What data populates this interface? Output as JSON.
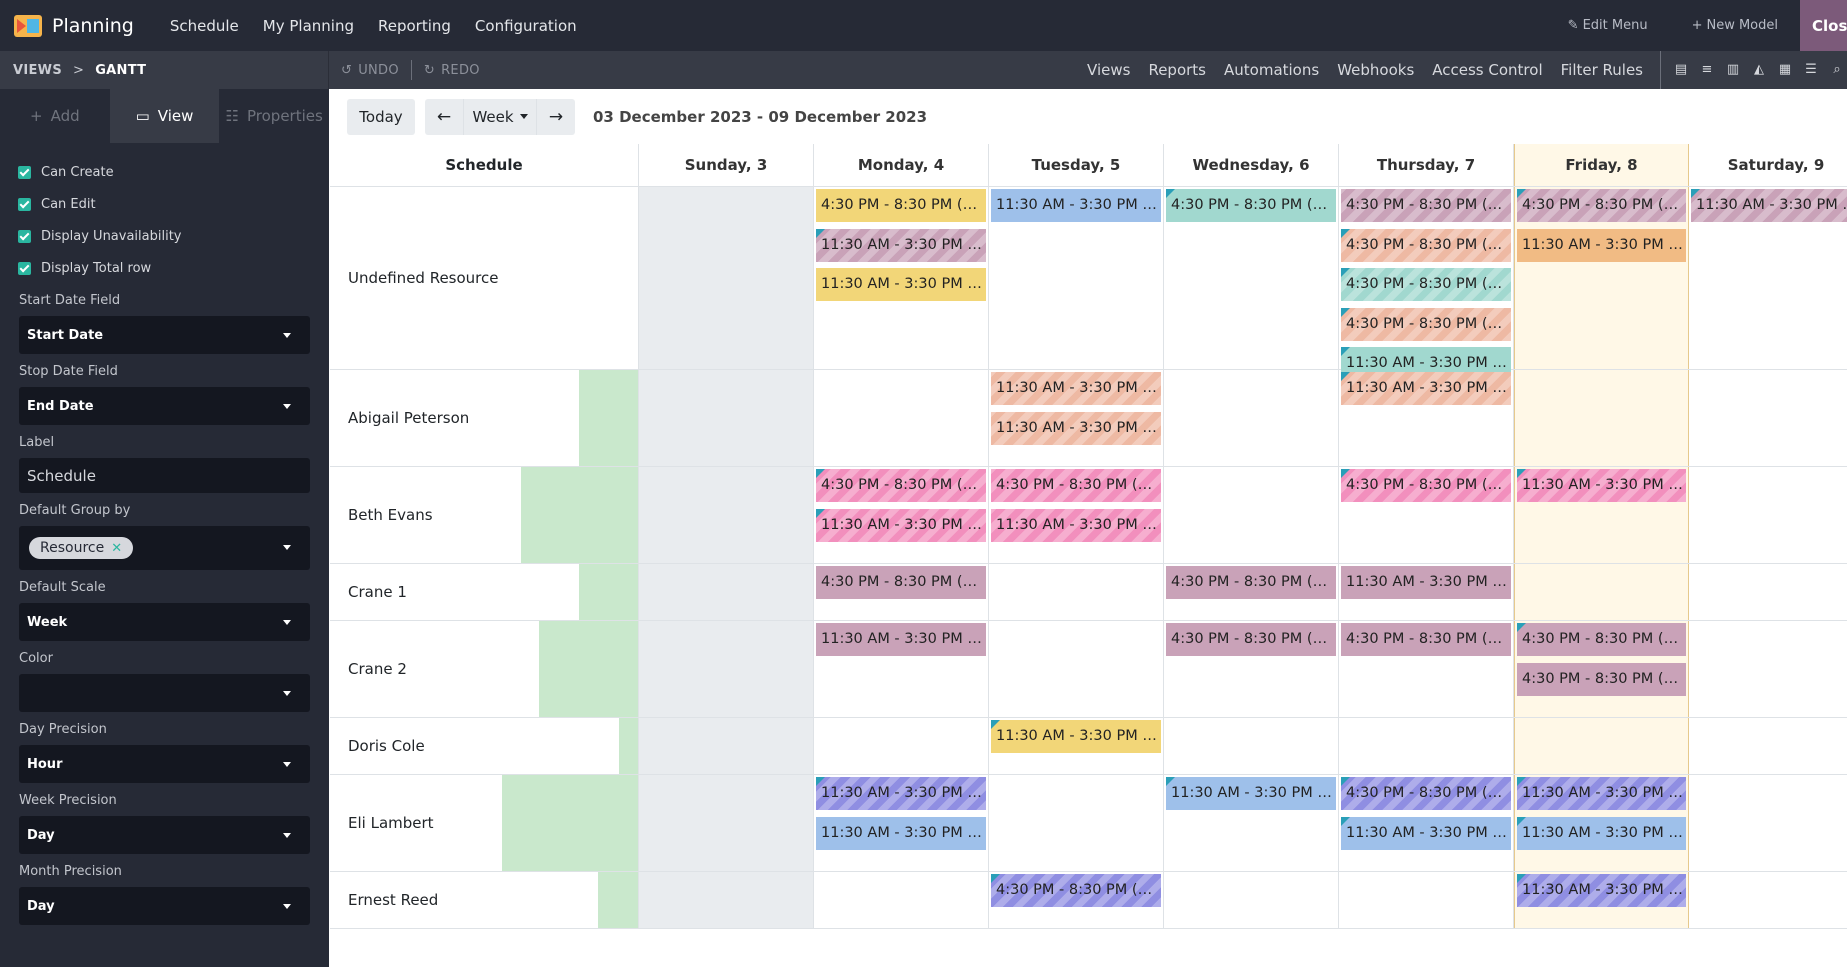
{
  "topbar": {
    "app_name": "Planning",
    "menu": [
      "Schedule",
      "My Planning",
      "Reporting",
      "Configuration"
    ],
    "edit_menu": "Edit Menu",
    "new_model": "New Model",
    "close": "Close"
  },
  "secbar": {
    "crumb_views": "VIEWS",
    "crumb_sep": ">",
    "crumb_current": "GANTT",
    "undo": "UNDO",
    "redo": "REDO",
    "links": [
      "Views",
      "Reports",
      "Automations",
      "Webhooks",
      "Access Control",
      "Filter Rules"
    ],
    "view_icons": [
      "form-view-icon",
      "list-view-icon",
      "kanban-view-icon",
      "graph-view-icon",
      "pivot-view-icon",
      "gantt-view-icon",
      "search-view-icon"
    ]
  },
  "sidebar": {
    "tabs": {
      "add": "Add",
      "view": "View",
      "properties": "Properties"
    },
    "checks": [
      "Can Create",
      "Can Edit",
      "Display Unavailability",
      "Display Total row"
    ],
    "start_date": {
      "label": "Start Date Field",
      "value": "Start Date"
    },
    "stop_date": {
      "label": "Stop Date Field",
      "value": "End Date"
    },
    "label_field": {
      "label": "Label",
      "value": "Schedule"
    },
    "group_by": {
      "label": "Default Group by",
      "tag": "Resource"
    },
    "scale": {
      "label": "Default Scale",
      "value": "Week"
    },
    "color": {
      "label": "Color",
      "value": ""
    },
    "day_precision": {
      "label": "Day Precision",
      "value": "Hour"
    },
    "week_precision": {
      "label": "Week Precision",
      "value": "Day"
    },
    "month_precision": {
      "label": "Month Precision",
      "value": "Day"
    }
  },
  "toolbar": {
    "today": "Today",
    "prev": "←",
    "scale": "Week",
    "next": "→",
    "range": "03 December 2023 - 09 December 2023"
  },
  "gantt": {
    "row_header": "Schedule",
    "days": [
      "Sunday, 3",
      "Monday, 4",
      "Tuesday, 5",
      "Wednesday, 6",
      "Thursday, 7",
      "Friday, 8",
      "Saturday, 9"
    ],
    "colors": {
      "yellow": "#f2d678",
      "mauve": "#c9a2b8",
      "blue": "#9ec0ea",
      "teal": "#a1d8cf",
      "salmon": "#eeb9a3",
      "orange": "#f1bb84",
      "pink": "#f28fbd",
      "violet": "#8f8ee2"
    },
    "rows": [
      {
        "name": "Undefined Resource",
        "green_fraction": 0,
        "height": 183,
        "cells": [
          [],
          [
            {
              "t": "4:30 PM - 8:30 PM (2…",
              "c": "yellow",
              "s": false,
              "k": false
            },
            {
              "t": "11:30 AM - 3:30 PM (…",
              "c": "mauve",
              "s": true,
              "k": true
            },
            {
              "t": "11:30 AM - 3:30 PM (…",
              "c": "yellow",
              "s": false,
              "k": false
            }
          ],
          [
            {
              "t": "11:30 AM - 3:30 PM (…",
              "c": "blue",
              "s": false,
              "k": false
            }
          ],
          [
            {
              "t": "4:30 PM - 8:30 PM (4…",
              "c": "teal",
              "s": false,
              "k": true
            }
          ],
          [
            {
              "t": "4:30 PM - 8:30 PM (4…",
              "c": "mauve",
              "s": true,
              "k": false
            },
            {
              "t": "4:30 PM - 8:30 PM (4…",
              "c": "salmon",
              "s": true,
              "k": true
            },
            {
              "t": "4:30 PM - 8:30 PM (4…",
              "c": "teal",
              "s": true,
              "k": true
            },
            {
              "t": "4:30 PM - 8:30 PM (4…",
              "c": "salmon",
              "s": true,
              "k": true
            },
            {
              "t": "11:30 AM - 3:30 PM (…",
              "c": "teal",
              "s": false,
              "k": true
            }
          ],
          [
            {
              "t": "4:30 PM - 8:30 PM (4…",
              "c": "mauve",
              "s": true,
              "k": true
            },
            {
              "t": "11:30 AM - 3:30 PM (…",
              "c": "orange",
              "s": false,
              "k": false
            }
          ],
          [
            {
              "t": "11:30 AM - 3:30 PM (…",
              "c": "mauve",
              "s": true,
              "k": true
            }
          ]
        ]
      },
      {
        "name": "Abigail Peterson",
        "green_fraction": 0.19,
        "height": 97,
        "cells": [
          [],
          [],
          [
            {
              "t": "11:30 AM - 3:30 PM (…",
              "c": "salmon",
              "s": true,
              "k": false
            },
            {
              "t": "11:30 AM - 3:30 PM (…",
              "c": "salmon",
              "s": true,
              "k": false
            }
          ],
          [],
          [
            {
              "t": "11:30 AM - 3:30 PM (…",
              "c": "salmon",
              "s": true,
              "k": true
            }
          ],
          [],
          []
        ]
      },
      {
        "name": "Beth Evans",
        "green_fraction": 0.38,
        "height": 97,
        "cells": [
          [],
          [
            {
              "t": "4:30 PM - 8:30 PM (3…",
              "c": "pink",
              "s": true,
              "k": true
            },
            {
              "t": "11:30 AM - 3:30 PM (…",
              "c": "pink",
              "s": true,
              "k": true
            }
          ],
          [
            {
              "t": "4:30 PM - 8:30 PM (3…",
              "c": "pink",
              "s": true,
              "k": false
            },
            {
              "t": "11:30 AM - 3:30 PM (…",
              "c": "pink",
              "s": true,
              "k": false
            }
          ],
          [],
          [
            {
              "t": "4:30 PM - 8:30 PM (3…",
              "c": "pink",
              "s": true,
              "k": true
            }
          ],
          [
            {
              "t": "11:30 AM - 3:30 PM (…",
              "c": "pink",
              "s": true,
              "k": true
            }
          ],
          []
        ]
      },
      {
        "name": "Crane 1",
        "green_fraction": 0.19,
        "height": 57,
        "cells": [
          [],
          [
            {
              "t": "4:30 PM - 8:30 PM (3…",
              "c": "mauve",
              "s": false,
              "k": false
            }
          ],
          [],
          [
            {
              "t": "4:30 PM - 8:30 PM (3…",
              "c": "mauve",
              "s": false,
              "k": false
            }
          ],
          [
            {
              "t": "11:30 AM - 3:30 PM (…",
              "c": "mauve",
              "s": false,
              "k": false
            }
          ],
          [],
          []
        ]
      },
      {
        "name": "Crane 2",
        "green_fraction": 0.32,
        "height": 97,
        "cells": [
          [],
          [
            {
              "t": "11:30 AM - 3:30 PM (…",
              "c": "mauve",
              "s": false,
              "k": false
            }
          ],
          [],
          [
            {
              "t": "4:30 PM - 8:30 PM (3…",
              "c": "mauve",
              "s": false,
              "k": false
            }
          ],
          [
            {
              "t": "4:30 PM - 8:30 PM (3…",
              "c": "mauve",
              "s": false,
              "k": false
            }
          ],
          [
            {
              "t": "4:30 PM - 8:30 PM (3…",
              "c": "mauve",
              "s": false,
              "k": true
            },
            {
              "t": "4:30 PM - 8:30 PM (3…",
              "c": "mauve",
              "s": false,
              "k": false
            }
          ],
          []
        ]
      },
      {
        "name": "Doris Cole",
        "green_fraction": 0.06,
        "height": 57,
        "cells": [
          [],
          [],
          [
            {
              "t": "11:30 AM - 3:30 PM (…",
              "c": "yellow",
              "s": false,
              "k": true
            }
          ],
          [],
          [],
          [],
          []
        ]
      },
      {
        "name": "Eli Lambert",
        "green_fraction": 0.44,
        "height": 97,
        "cells": [
          [],
          [
            {
              "t": "11:30 AM - 3:30 PM (…",
              "c": "violet",
              "s": true,
              "k": true
            },
            {
              "t": "11:30 AM - 3:30 PM (…",
              "c": "blue",
              "s": false,
              "k": false
            }
          ],
          [],
          [
            {
              "t": "11:30 AM - 3:30 PM (…",
              "c": "blue",
              "s": false,
              "k": true
            }
          ],
          [
            {
              "t": "4:30 PM - 8:30 PM (3…",
              "c": "violet",
              "s": true,
              "k": true
            },
            {
              "t": "11:30 AM - 3:30 PM (…",
              "c": "blue",
              "s": false,
              "k": true
            }
          ],
          [
            {
              "t": "11:30 AM - 3:30 PM (…",
              "c": "violet",
              "s": true,
              "k": true
            },
            {
              "t": "11:30 AM - 3:30 PM (…",
              "c": "blue",
              "s": false,
              "k": true
            }
          ],
          []
        ]
      },
      {
        "name": "Ernest Reed",
        "green_fraction": 0.13,
        "height": 57,
        "cells": [
          [],
          [],
          [
            {
              "t": "4:30 PM - 8:30 PM (3…",
              "c": "violet",
              "s": true,
              "k": true
            }
          ],
          [],
          [],
          [
            {
              "t": "11:30 AM - 3:30 PM (…",
              "c": "violet",
              "s": true,
              "k": true
            }
          ],
          []
        ]
      }
    ]
  }
}
